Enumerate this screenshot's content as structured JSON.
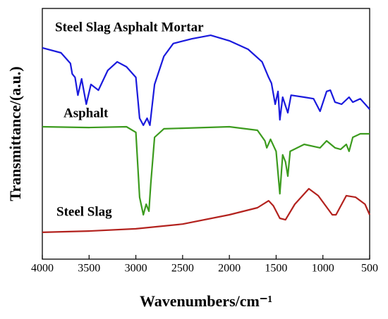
{
  "chart_data": {
    "type": "line",
    "xlabel": "Wavenumbers/cm⁻¹",
    "ylabel": "Transmittance/(a.u.)",
    "xlim": [
      4000,
      500
    ],
    "ylim": [
      0,
      100
    ],
    "xticks": [
      4000,
      3500,
      3000,
      2500,
      2000,
      1500,
      1000,
      500
    ],
    "series": [
      {
        "name": "Steel Slag Asphalt Mortar",
        "color": "#1a1add",
        "x": [
          4000,
          3800,
          3700,
          3680,
          3650,
          3620,
          3580,
          3530,
          3480,
          3400,
          3300,
          3200,
          3100,
          3000,
          2960,
          2920,
          2880,
          2850,
          2800,
          2700,
          2600,
          2400,
          2200,
          2000,
          1800,
          1650,
          1580,
          1550,
          1510,
          1480,
          1460,
          1430,
          1400,
          1375,
          1340,
          1200,
          1100,
          1030,
          960,
          920,
          870,
          800,
          720,
          680,
          600,
          500
        ],
        "values": [
          84.3,
          82.3,
          78.1,
          73.9,
          72.5,
          65.4,
          71.9,
          61.8,
          69.7,
          67.4,
          75.3,
          78.7,
          76.7,
          72.5,
          56.2,
          53.4,
          56.2,
          53.4,
          69.7,
          80.9,
          86.0,
          87.9,
          89.3,
          87.1,
          83.7,
          78.7,
          72.5,
          70.2,
          61.8,
          66.9,
          55.6,
          64.6,
          61.2,
          58.4,
          65.4,
          64.6,
          64.0,
          59.0,
          66.9,
          67.4,
          62.6,
          61.8,
          64.6,
          62.6,
          64.0,
          59.8
        ]
      },
      {
        "name": "Asphalt",
        "color": "#3c9b1e",
        "x": [
          4000,
          3500,
          3100,
          3000,
          2960,
          2920,
          2890,
          2860,
          2840,
          2800,
          2700,
          2000,
          1700,
          1620,
          1600,
          1560,
          1500,
          1460,
          1430,
          1400,
          1375,
          1350,
          1200,
          1030,
          960,
          870,
          810,
          750,
          720,
          680,
          600,
          500
        ],
        "values": [
          52.8,
          52.5,
          52.8,
          50.6,
          24.7,
          17.7,
          21.9,
          19.1,
          30.3,
          48.6,
          52.0,
          52.8,
          51.4,
          47.2,
          44.4,
          47.8,
          43.0,
          26.1,
          41.6,
          38.8,
          33.1,
          43.0,
          45.8,
          44.4,
          47.2,
          44.4,
          43.8,
          45.8,
          43.0,
          48.6,
          50.0,
          50.0
        ]
      },
      {
        "name": "Steel Slag",
        "color": "#b3221e",
        "x": [
          4000,
          3500,
          3000,
          2500,
          2000,
          1700,
          1580,
          1530,
          1460,
          1400,
          1300,
          1150,
          1050,
          900,
          860,
          750,
          650,
          550,
          500
        ],
        "values": [
          10.7,
          11.2,
          12.1,
          14.0,
          17.7,
          20.5,
          23.3,
          21.3,
          16.3,
          15.7,
          21.9,
          28.1,
          25.3,
          17.7,
          17.7,
          25.3,
          24.7,
          21.9,
          17.7
        ]
      }
    ]
  }
}
